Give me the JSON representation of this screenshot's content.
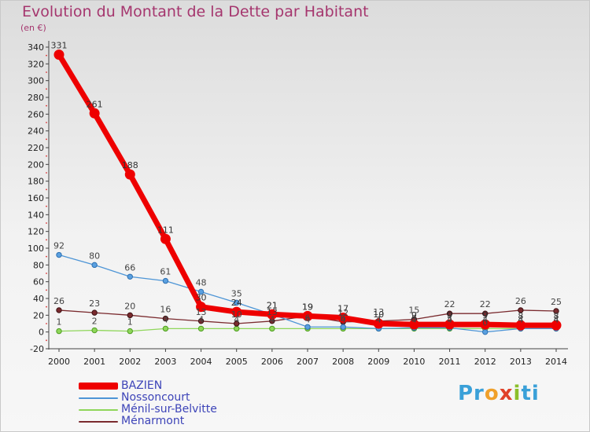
{
  "chart_data": {
    "type": "line",
    "title": "Evolution du Montant de la Dette par Habitant",
    "unit_label": "(en €)",
    "x": [
      "2000",
      "2001",
      "2002",
      "2003",
      "2004",
      "2005",
      "2006",
      "2007",
      "2008",
      "2009",
      "2010",
      "2011",
      "2012",
      "2013",
      "2014"
    ],
    "ylim": [
      -20,
      340
    ],
    "yticks": [
      -20,
      0,
      20,
      40,
      60,
      80,
      100,
      120,
      140,
      160,
      180,
      200,
      220,
      240,
      260,
      280,
      300,
      320,
      340
    ],
    "grid": false,
    "legend_position": "bottom-left",
    "series": [
      {
        "name": "BAZIEN",
        "color": "#ee0000",
        "values": [
          331,
          261,
          188,
          111,
          30,
          24,
          21,
          19,
          17,
          10,
          9,
          9,
          9,
          8,
          8
        ],
        "labels": [
          "331",
          "261",
          "188",
          "111",
          "30",
          "24",
          "21",
          "19",
          "17",
          "10",
          "9",
          "9",
          "9",
          "8",
          "8"
        ]
      },
      {
        "name": "Nossoncourt",
        "color": "#4d95d6",
        "values": [
          92,
          80,
          66,
          61,
          48,
          35,
          21,
          6,
          6,
          4,
          5,
          5,
          0,
          4,
          4
        ],
        "labels": [
          "92",
          "80",
          "66",
          "61",
          "48",
          "35",
          "21",
          "6",
          "6",
          "4",
          "5",
          "5",
          "0",
          "4",
          "4"
        ]
      },
      {
        "name": "Ménil-sur-Belvitte",
        "color": "#8fd65a",
        "values": [
          1,
          2,
          1,
          4,
          4,
          4,
          4,
          4,
          4,
          4,
          4,
          4,
          4,
          4,
          4
        ],
        "labels": [
          "1",
          "2",
          "1",
          "4",
          "4",
          "4",
          "4",
          "4",
          "4",
          "4",
          "4",
          "4",
          "4",
          "4",
          "4"
        ]
      },
      {
        "name": "Ménarmont",
        "color": "#7a2a2e",
        "values": [
          26,
          23,
          20,
          16,
          13,
          10,
          13,
          19,
          12,
          13,
          15,
          22,
          22,
          26,
          25
        ],
        "labels": [
          "26",
          "23",
          "20",
          "16",
          "13",
          "10",
          "13",
          "19",
          "12",
          "13",
          "15",
          "22",
          "22",
          "26",
          "25"
        ]
      }
    ]
  },
  "logo": {
    "text_1": "Pr",
    "text_2": "o",
    "text_3": "x",
    "text_4": "i",
    "text_5": "ti"
  }
}
